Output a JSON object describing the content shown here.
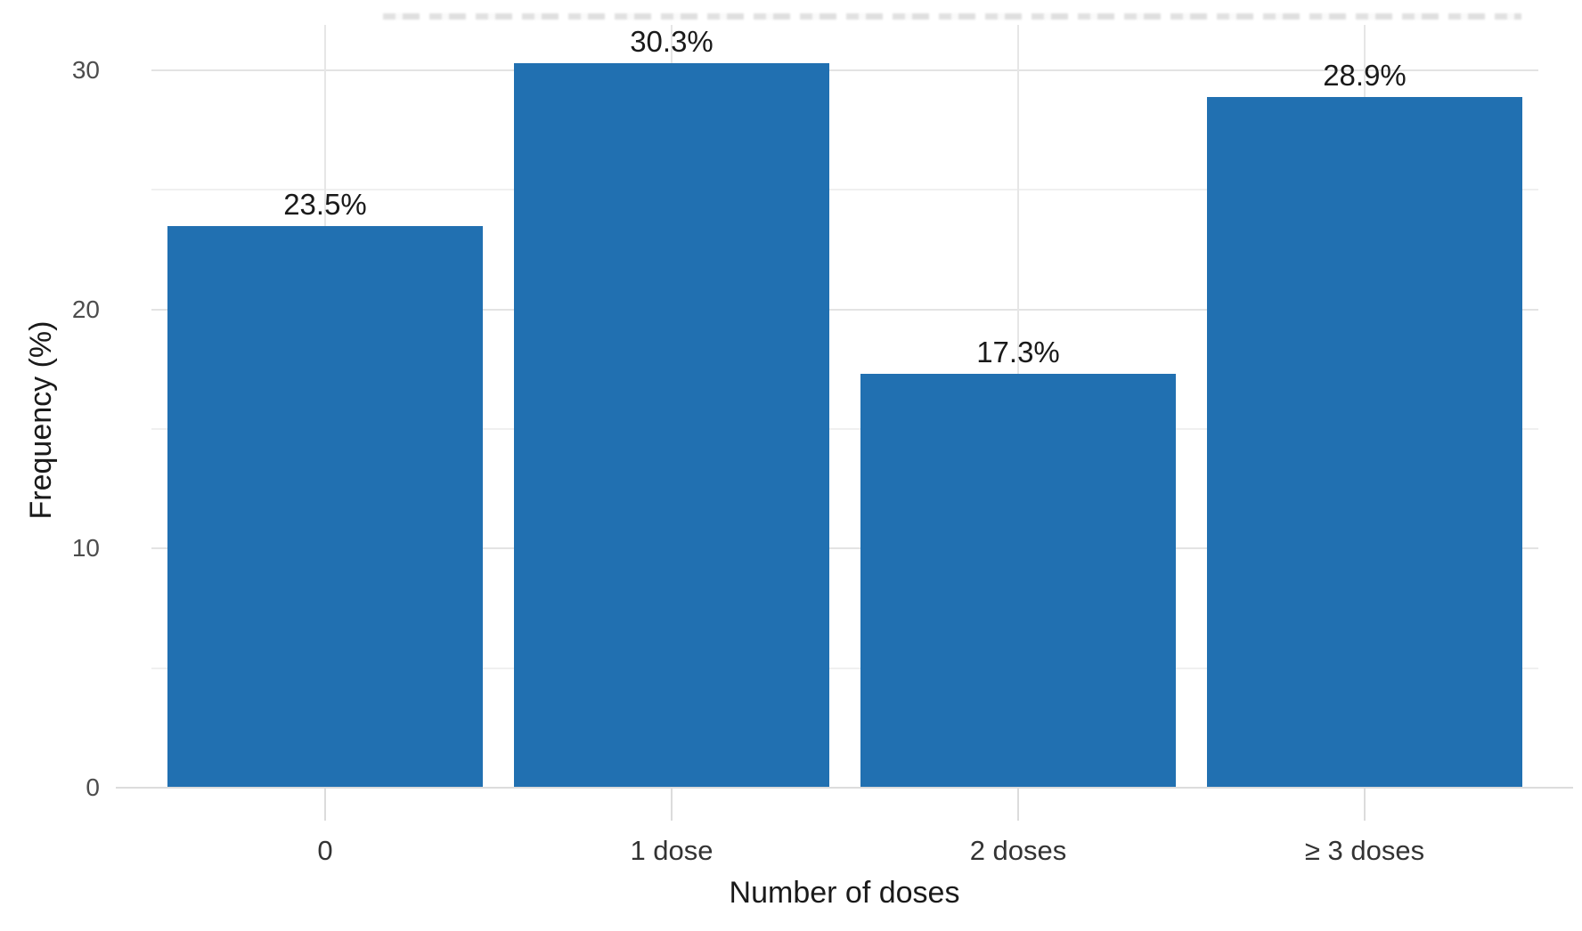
{
  "chart_data": {
    "type": "bar",
    "title": "",
    "categories": [
      "0",
      "1 dose",
      "2 doses",
      "≥ 3 doses"
    ],
    "values": [
      23.5,
      30.3,
      17.3,
      28.9
    ],
    "bar_labels": [
      "23.5%",
      "30.3%",
      "17.3%",
      "28.9%"
    ],
    "xlabel": "Number of doses",
    "ylabel": "Frequency (%)",
    "y_ticks": [
      0,
      10,
      20,
      30
    ],
    "y_minor_ticks": [
      5,
      15,
      25
    ],
    "ylim": [
      0,
      31.9
    ],
    "grid": "on",
    "legend": "none",
    "colors": {
      "bar_fill": "#2170b1",
      "bar_label_text": "#1a1a1a",
      "x_tick_text": "#333333",
      "y_tick_text": "#4d4d4d",
      "axis_title_text": "#1a1a1a",
      "major_gridline": "#e3e3e3",
      "minor_gridline": "#f0f0f0",
      "axis_line": "#dcdcdc",
      "background": "#ffffff"
    }
  }
}
